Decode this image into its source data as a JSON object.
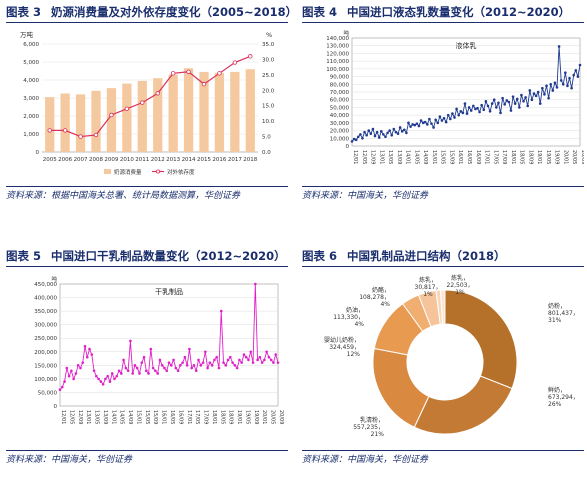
{
  "panels": [
    {
      "label": "图表 3",
      "title": "奶源消费量及对外依存度变化（2005~2018）",
      "source": "资料来源：根据中国海关总署、统计局数据测算，华创证券"
    },
    {
      "label": "图表 4",
      "title": "中国进口液态乳数量变化（2012~2020）",
      "source": "资料来源：中国海关，华创证券"
    },
    {
      "label": "图表 5",
      "title": "中国进口干乳制品数量变化（2012~2020）",
      "source": "资料来源：中国海关，华创证券"
    },
    {
      "label": "图表 6",
      "title": "中国乳制品进口结构（2018）",
      "source": "资料来源：中国海关，华创证券"
    }
  ],
  "chart_data": [
    {
      "type": "bar",
      "title": "",
      "unit_left": "万吨",
      "unit_right": "%",
      "categories": [
        "2005",
        "2006",
        "2007",
        "2008",
        "2009",
        "2010",
        "2011",
        "2012",
        "2013",
        "2014",
        "2015",
        "2016",
        "2017",
        "2018"
      ],
      "ylim": [
        0,
        6000
      ],
      "yticks": [
        0,
        1000,
        2000,
        3000,
        4000,
        5000,
        6000
      ],
      "y2lim": [
        0,
        35
      ],
      "y2ticks": [
        0,
        5,
        10,
        15,
        20,
        25,
        30,
        35
      ],
      "series": [
        {
          "name": "奶源消费量",
          "type": "bar",
          "axis": "left",
          "color": "#f5c9a0",
          "values": [
            3050,
            3250,
            3200,
            3400,
            3550,
            3800,
            3950,
            4100,
            4300,
            4650,
            4450,
            4400,
            4450,
            4600
          ]
        },
        {
          "name": "对外依存度",
          "type": "line",
          "axis": "right",
          "color": "#d9305a",
          "values": [
            7,
            7,
            5,
            5.5,
            12,
            14,
            16,
            19,
            25.5,
            26,
            22,
            25.5,
            29,
            31
          ]
        }
      ],
      "legend": "bottom"
    },
    {
      "type": "line",
      "title": "液体乳",
      "unit": "吨",
      "ylim": [
        0,
        140000
      ],
      "yticks": [
        0,
        10000,
        20000,
        30000,
        40000,
        50000,
        60000,
        70000,
        80000,
        90000,
        100000,
        110000,
        120000,
        130000,
        140000
      ],
      "x_labels": [
        "12/01",
        "12/05",
        "12/09",
        "13/01",
        "13/05",
        "13/09",
        "14/01",
        "14/05",
        "14/09",
        "15/01",
        "15/05",
        "15/09",
        "16/01",
        "16/05",
        "16/09",
        "17/01",
        "17/05",
        "17/09",
        "18/01",
        "18/05",
        "18/09",
        "19/01",
        "19/05",
        "19/09",
        "20/01",
        "20/05",
        "20/09"
      ],
      "series": [
        {
          "name": "液体乳",
          "color": "#1f3a8f",
          "values": [
            6000,
            9000,
            8000,
            12000,
            15000,
            10000,
            18000,
            14000,
            20000,
            16000,
            22000,
            13000,
            18000,
            11000,
            19000,
            15000,
            12000,
            17000,
            20000,
            14000,
            22000,
            18000,
            16000,
            24000,
            19000,
            21000,
            17000,
            30000,
            25000,
            28000,
            27000,
            29000,
            26000,
            33000,
            30000,
            31000,
            28000,
            35000,
            29000,
            24000,
            34000,
            30000,
            38000,
            33000,
            36000,
            31000,
            40000,
            35000,
            42000,
            37000,
            48000,
            40000,
            45000,
            43000,
            55000,
            42000,
            50000,
            46000,
            52000,
            48000,
            49000,
            44000,
            53000,
            47000,
            58000,
            52000,
            45000,
            55000,
            60000,
            50000,
            56000,
            43000,
            62000,
            54000,
            59000,
            57000,
            46000,
            64000,
            55000,
            61000,
            50000,
            66000,
            58000,
            63000,
            52000,
            72000,
            60000,
            68000,
            65000,
            70000,
            55000,
            75000,
            67000,
            78000,
            62000,
            80000,
            72000,
            82000,
            76000,
            129000,
            85000,
            80000,
            95000,
            78000,
            88000,
            75000,
            92000,
            98000,
            90000,
            105000
          ]
        }
      ]
    },
    {
      "type": "line",
      "title": "干乳制品",
      "unit": "吨",
      "ylim": [
        0,
        450000
      ],
      "yticks": [
        0,
        50000,
        100000,
        150000,
        200000,
        250000,
        300000,
        350000,
        400000,
        450000
      ],
      "x_labels": [
        "12/01",
        "12/05",
        "12/09",
        "13/01",
        "13/05",
        "13/09",
        "14/01",
        "14/05",
        "14/09",
        "15/01",
        "15/05",
        "15/09",
        "16/01",
        "16/05",
        "16/09",
        "17/01",
        "17/05",
        "17/09",
        "18/01",
        "18/05",
        "18/09",
        "19/01",
        "19/05",
        "19/09",
        "20/01",
        "20/05",
        "20/09"
      ],
      "series": [
        {
          "name": "干乳制品",
          "color": "#e020c8",
          "values": [
            60000,
            70000,
            90000,
            140000,
            110000,
            130000,
            100000,
            120000,
            150000,
            140000,
            160000,
            220000,
            180000,
            210000,
            190000,
            130000,
            110000,
            100000,
            90000,
            80000,
            100000,
            110000,
            90000,
            120000,
            100000,
            110000,
            130000,
            120000,
            170000,
            140000,
            130000,
            240000,
            120000,
            150000,
            140000,
            120000,
            160000,
            180000,
            130000,
            120000,
            210000,
            140000,
            130000,
            120000,
            170000,
            150000,
            140000,
            130000,
            160000,
            150000,
            170000,
            140000,
            130000,
            150000,
            160000,
            180000,
            150000,
            210000,
            140000,
            150000,
            130000,
            170000,
            150000,
            160000,
            200000,
            140000,
            160000,
            150000,
            170000,
            180000,
            140000,
            350000,
            160000,
            150000,
            170000,
            180000,
            160000,
            150000,
            140000,
            170000,
            160000,
            190000,
            180000,
            170000,
            200000,
            160000,
            450000,
            170000,
            180000,
            160000,
            170000,
            200000,
            180000,
            170000,
            160000,
            190000,
            160000
          ]
        }
      ]
    },
    {
      "type": "pie",
      "title": "",
      "donut": true,
      "slices": [
        {
          "name": "奶粉",
          "value": "801,437",
          "pct": 31,
          "color": "#b5702a"
        },
        {
          "name": "鲜奶",
          "value": "673,294",
          "pct": 26,
          "color": "#c27a35"
        },
        {
          "name": "乳清粉",
          "value": "557,235",
          "pct": 21,
          "color": "#d98a40"
        },
        {
          "name": "婴幼儿奶粉",
          "value": "324,459",
          "pct": 12,
          "color": "#e89a50"
        },
        {
          "name": "奶油",
          "value": "113,330",
          "pct": 4,
          "color": "#f0ae70"
        },
        {
          "name": "奶酪",
          "value": "108,278",
          "pct": 4,
          "color": "#f5c49a"
        },
        {
          "name": "炼乳",
          "value": "30,817",
          "pct": 1,
          "color": "#f8d6b8"
        },
        {
          "name": "炼乳",
          "value": "22,503",
          "pct": 1,
          "color": "#fbe6d4"
        }
      ]
    }
  ]
}
